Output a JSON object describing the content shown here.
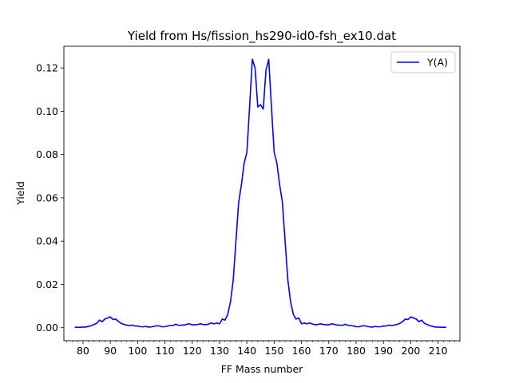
{
  "chart_data": {
    "type": "line",
    "title": "Yield from  Hs/fission_hs290-id0-fsh_ex10.dat",
    "xlabel": "FF Mass number",
    "ylabel": "Yield",
    "xlim": [
      73,
      218
    ],
    "ylim": [
      -0.006,
      0.13
    ],
    "x_major_ticks": [
      80,
      90,
      100,
      110,
      120,
      130,
      140,
      150,
      160,
      170,
      180,
      190,
      200,
      210
    ],
    "x_minor_step": 2,
    "y_ticks": [
      0.0,
      0.02,
      0.04,
      0.06,
      0.08,
      0.1,
      0.12
    ],
    "y_tick_labels": [
      "0.00",
      "0.02",
      "0.04",
      "0.06",
      "0.08",
      "0.10",
      "0.12"
    ],
    "grid": false,
    "legend_position": "top-right",
    "series": [
      {
        "name": "Y(A)",
        "color": "#0000ff",
        "x": [
          77,
          78,
          79,
          80,
          81,
          82,
          83,
          84,
          85,
          86,
          87,
          88,
          89,
          90,
          91,
          92,
          93,
          94,
          95,
          96,
          97,
          98,
          99,
          100,
          101,
          102,
          103,
          104,
          105,
          106,
          107,
          108,
          109,
          110,
          111,
          112,
          113,
          114,
          115,
          116,
          117,
          118,
          119,
          120,
          121,
          122,
          123,
          124,
          125,
          126,
          127,
          128,
          129,
          130,
          131,
          132,
          133,
          134,
          135,
          136,
          137,
          138,
          139,
          140,
          141,
          142,
          143,
          144,
          145,
          146,
          147,
          148,
          149,
          150,
          151,
          152,
          153,
          154,
          155,
          156,
          157,
          158,
          159,
          160,
          161,
          162,
          163,
          164,
          165,
          166,
          167,
          168,
          169,
          170,
          171,
          172,
          173,
          174,
          175,
          176,
          177,
          178,
          179,
          180,
          181,
          182,
          183,
          184,
          185,
          186,
          187,
          188,
          189,
          190,
          191,
          192,
          193,
          194,
          195,
          196,
          197,
          198,
          199,
          200,
          201,
          202,
          203,
          204,
          205,
          206,
          207,
          208,
          209,
          210,
          211,
          212,
          213
        ],
        "values": [
          0.0002,
          0.0002,
          0.0002,
          0.0003,
          0.0003,
          0.0006,
          0.0009,
          0.0015,
          0.002,
          0.0035,
          0.0028,
          0.004,
          0.0045,
          0.005,
          0.0038,
          0.004,
          0.0028,
          0.002,
          0.0015,
          0.0012,
          0.001,
          0.0012,
          0.0008,
          0.0008,
          0.0005,
          0.0004,
          0.0006,
          0.0003,
          0.0004,
          0.0006,
          0.0009,
          0.0008,
          0.0004,
          0.0005,
          0.0008,
          0.001,
          0.0011,
          0.0016,
          0.0011,
          0.0012,
          0.0012,
          0.0016,
          0.0018,
          0.0013,
          0.0014,
          0.0015,
          0.0018,
          0.0015,
          0.0014,
          0.0017,
          0.0022,
          0.0018,
          0.0022,
          0.0018,
          0.004,
          0.0035,
          0.0062,
          0.012,
          0.022,
          0.04,
          0.058,
          0.066,
          0.076,
          0.081,
          0.102,
          0.124,
          0.12,
          0.102,
          0.103,
          0.101,
          0.119,
          0.124,
          0.102,
          0.081,
          0.076,
          0.066,
          0.058,
          0.04,
          0.022,
          0.012,
          0.0062,
          0.004,
          0.0045,
          0.0018,
          0.0022,
          0.0018,
          0.0022,
          0.0017,
          0.0014,
          0.0015,
          0.0018,
          0.0015,
          0.0014,
          0.0013,
          0.0018,
          0.0016,
          0.0012,
          0.0012,
          0.0011,
          0.0016,
          0.0011,
          0.001,
          0.0008,
          0.0005,
          0.0004,
          0.0008,
          0.0009,
          0.0006,
          0.0004,
          0.0003,
          0.0006,
          0.0004,
          0.0005,
          0.0008,
          0.0008,
          0.0012,
          0.001,
          0.0012,
          0.0015,
          0.002,
          0.0028,
          0.004,
          0.0038,
          0.005,
          0.0045,
          0.004,
          0.0028,
          0.0035,
          0.002,
          0.0015,
          0.0009,
          0.0006,
          0.0003,
          0.0003,
          0.0002,
          0.0002,
          0.0002
        ]
      }
    ]
  }
}
